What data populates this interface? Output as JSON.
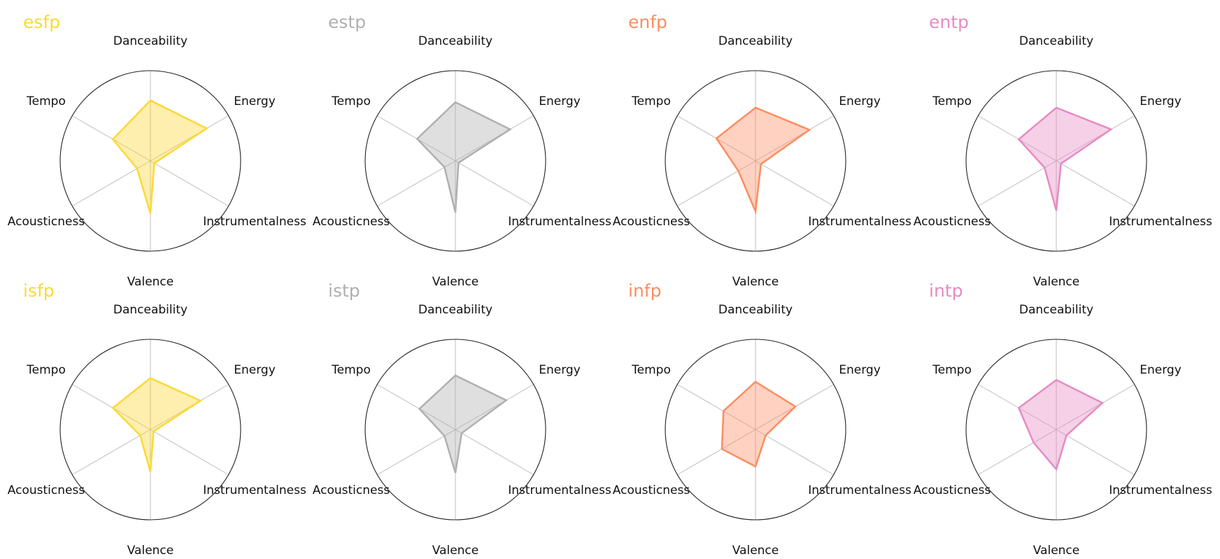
{
  "chart_data": {
    "type": "radar",
    "axes": [
      "Danceability",
      "Energy",
      "Instrumentalness",
      "Valence",
      "Acousticness",
      "Tempo"
    ],
    "rlim": [
      0,
      1
    ],
    "grid": true,
    "layout": {
      "rows": 2,
      "cols": 4
    },
    "panels": [
      {
        "title": "esfp",
        "color": "#fdd835",
        "values": [
          0.67,
          0.72,
          0.05,
          0.58,
          0.17,
          0.48
        ]
      },
      {
        "title": "estp",
        "color": "#b0b0b0",
        "values": [
          0.65,
          0.7,
          0.04,
          0.57,
          0.14,
          0.49
        ]
      },
      {
        "title": "enfp",
        "color": "#fc8d62",
        "values": [
          0.59,
          0.69,
          0.07,
          0.56,
          0.22,
          0.5
        ]
      },
      {
        "title": "entp",
        "color": "#e78ac3",
        "values": [
          0.59,
          0.7,
          0.06,
          0.55,
          0.15,
          0.48
        ]
      },
      {
        "title": "isfp",
        "color": "#fdd835",
        "values": [
          0.57,
          0.64,
          0.04,
          0.47,
          0.13,
          0.48
        ]
      },
      {
        "title": "istp",
        "color": "#b0b0b0",
        "values": [
          0.6,
          0.65,
          0.08,
          0.48,
          0.14,
          0.46
        ]
      },
      {
        "title": "infp",
        "color": "#fc8d62",
        "values": [
          0.53,
          0.51,
          0.13,
          0.41,
          0.43,
          0.41
        ]
      },
      {
        "title": "intp",
        "color": "#e78ac3",
        "values": [
          0.55,
          0.59,
          0.13,
          0.44,
          0.29,
          0.48
        ]
      }
    ]
  }
}
